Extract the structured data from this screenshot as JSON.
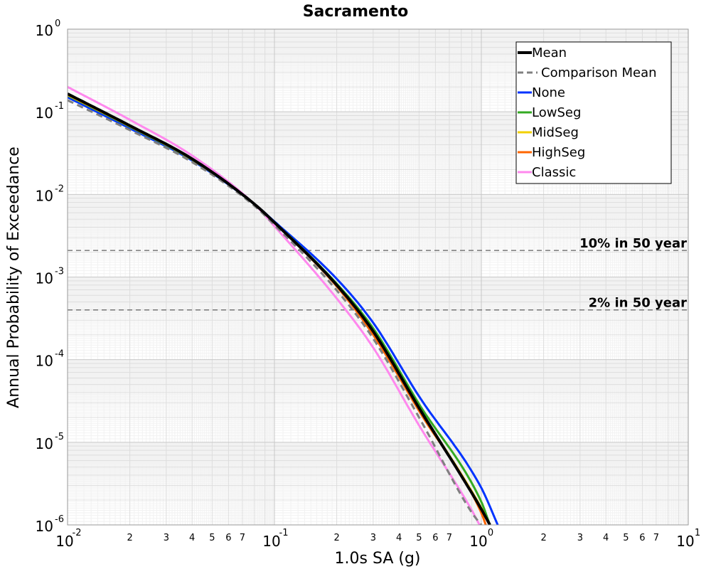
{
  "chart_data": {
    "type": "line",
    "title": "Sacramento",
    "xlabel": "1.0s SA (g)",
    "ylabel": "Annual Probability of Exceedance",
    "xscale": "log",
    "yscale": "log",
    "xlim": [
      0.01,
      10
    ],
    "ylim": [
      1e-06,
      1
    ],
    "x_ticks": [
      {
        "base": "10",
        "exp": "-2"
      },
      {
        "base": "10",
        "exp": "-1"
      },
      {
        "base": "10",
        "exp": "0"
      },
      {
        "base": "10",
        "exp": "1"
      }
    ],
    "x_minor_labels": [
      "2",
      "3",
      "4",
      "5",
      "6",
      "7"
    ],
    "y_ticks": [
      {
        "base": "10",
        "exp": "0"
      },
      {
        "base": "10",
        "exp": "-1"
      },
      {
        "base": "10",
        "exp": "-2"
      },
      {
        "base": "10",
        "exp": "-3"
      },
      {
        "base": "10",
        "exp": "-4"
      },
      {
        "base": "10",
        "exp": "-5"
      },
      {
        "base": "10",
        "exp": "-6"
      }
    ],
    "grid": true,
    "legend_position": "top-right",
    "reference_lines": [
      {
        "label": "10% in 50 year",
        "y": 0.0021
      },
      {
        "label": "2% in 50 year",
        "y": 0.0004
      }
    ],
    "series": [
      {
        "name": "Mean",
        "color": "#000000",
        "style": "solid",
        "weight": "thick",
        "x": [
          0.01,
          0.02,
          0.04,
          0.0794,
          0.1,
          0.2,
          0.3,
          0.5,
          1.0,
          1.1
        ],
        "y": [
          0.165,
          0.068,
          0.0269,
          0.00776,
          0.00457,
          0.0008,
          0.00022,
          2.6e-05,
          1.55e-06,
          1e-06
        ]
      },
      {
        "name": "Comparison Mean",
        "color": "#808080",
        "style": "dashed",
        "weight": "normal",
        "x": [
          0.01,
          0.02,
          0.04,
          0.0794,
          0.1,
          0.2,
          0.3,
          0.5,
          0.9,
          1.0
        ],
        "y": [
          0.138,
          0.06,
          0.0246,
          0.0074,
          0.00427,
          0.00069,
          0.00018,
          2e-05,
          1.4e-06,
          1e-06
        ]
      },
      {
        "name": "None",
        "color": "#0033ff",
        "style": "solid",
        "weight": "normal",
        "x": [
          0.01,
          0.02,
          0.04,
          0.0794,
          0.1,
          0.2,
          0.3,
          0.5,
          1.0,
          1.2
        ],
        "y": [
          0.15,
          0.063,
          0.0257,
          0.00776,
          0.0047,
          0.00095,
          0.00028,
          3.6e-05,
          2.8e-06,
          1e-06
        ]
      },
      {
        "name": "LowSeg",
        "color": "#33aa22",
        "style": "solid",
        "weight": "normal",
        "x": [
          0.01,
          0.02,
          0.04,
          0.0794,
          0.1,
          0.2,
          0.3,
          0.5,
          1.0,
          1.1
        ],
        "y": [
          0.158,
          0.066,
          0.0263,
          0.00776,
          0.00462,
          0.00083,
          0.00024,
          2.9e-05,
          1.9e-06,
          1e-06
        ]
      },
      {
        "name": "MidSeg",
        "color": "#f2d000",
        "style": "solid",
        "weight": "normal",
        "x": [
          0.01,
          0.02,
          0.04,
          0.0794,
          0.1,
          0.2,
          0.3,
          0.5,
          1.0,
          1.1
        ],
        "y": [
          0.16,
          0.067,
          0.0265,
          0.00776,
          0.00458,
          0.0008,
          0.00022,
          2.6e-05,
          1.6e-06,
          1e-06
        ]
      },
      {
        "name": "HighSeg",
        "color": "#ff6600",
        "style": "solid",
        "weight": "normal",
        "x": [
          0.01,
          0.02,
          0.04,
          0.0794,
          0.1,
          0.2,
          0.3,
          0.5,
          1.0,
          1.05
        ],
        "y": [
          0.162,
          0.067,
          0.0267,
          0.00776,
          0.00455,
          0.00077,
          0.0002,
          2.4e-05,
          1.4e-06,
          1e-06
        ]
      },
      {
        "name": "Classic",
        "color": "#ff88ee",
        "style": "solid",
        "weight": "normal",
        "x": [
          0.01,
          0.02,
          0.04,
          0.0794,
          0.1,
          0.2,
          0.3,
          0.5,
          0.9,
          0.98
        ],
        "y": [
          0.2,
          0.08,
          0.0295,
          0.00776,
          0.00412,
          0.00055,
          0.00014,
          1.6e-05,
          1.5e-06,
          1e-06
        ]
      }
    ]
  }
}
